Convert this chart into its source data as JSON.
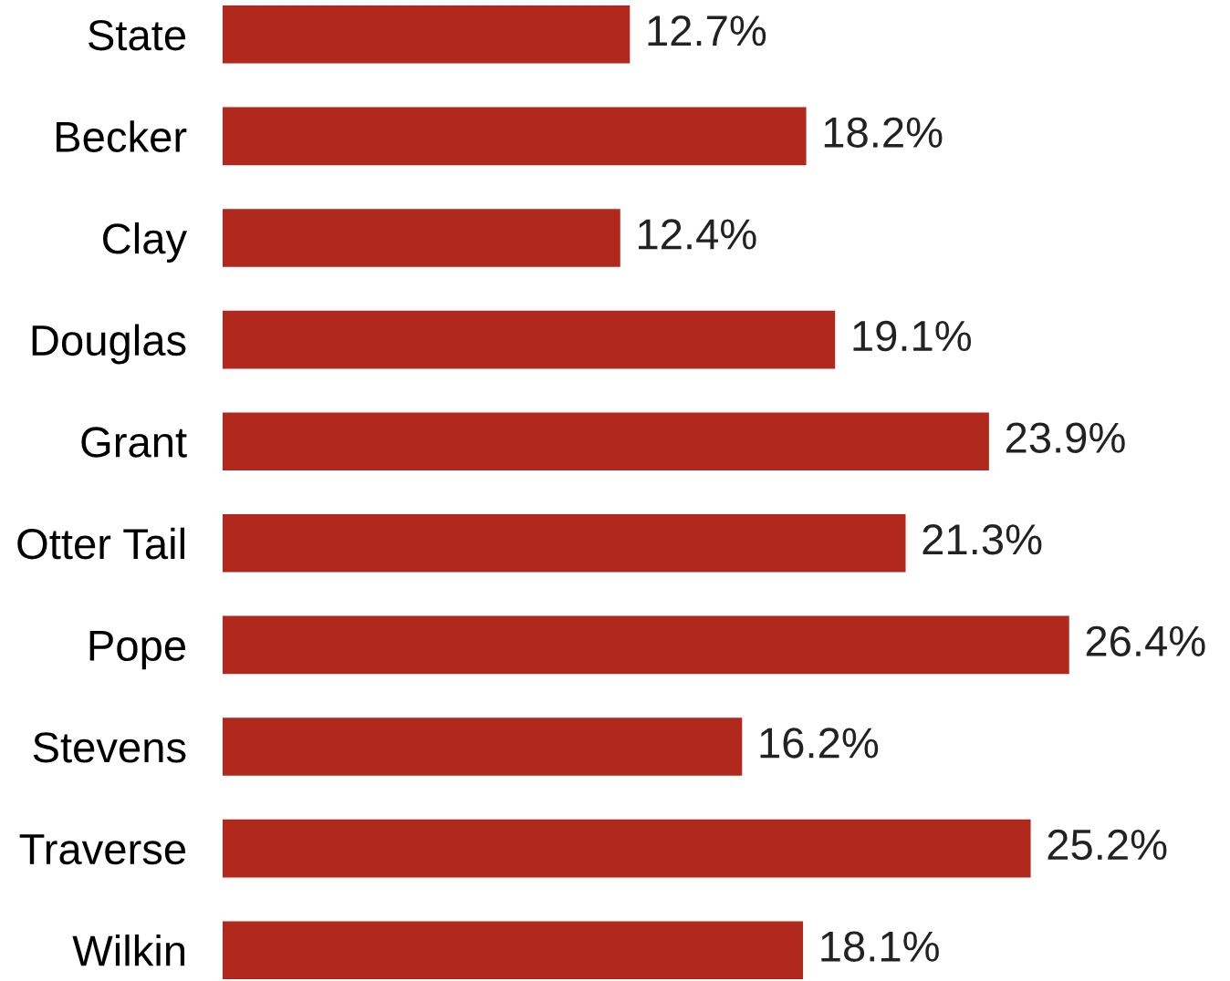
{
  "chart_data": {
    "type": "bar",
    "orientation": "horizontal",
    "categories": [
      "State",
      "Becker",
      "Clay",
      "Douglas",
      "Grant",
      "Otter Tail",
      "Pope",
      "Stevens",
      "Traverse",
      "Wilkin"
    ],
    "values": [
      12.7,
      18.2,
      12.4,
      19.1,
      23.9,
      21.3,
      26.4,
      16.2,
      25.2,
      18.1
    ],
    "value_labels": [
      "12.7%",
      "18.2%",
      "12.4%",
      "19.1%",
      "23.9%",
      "21.3%",
      "26.4%",
      "16.2%",
      "25.2%",
      "18.1%"
    ],
    "color": "#b1291d",
    "tick_labels": "y",
    "grid": false,
    "legend": false
  }
}
